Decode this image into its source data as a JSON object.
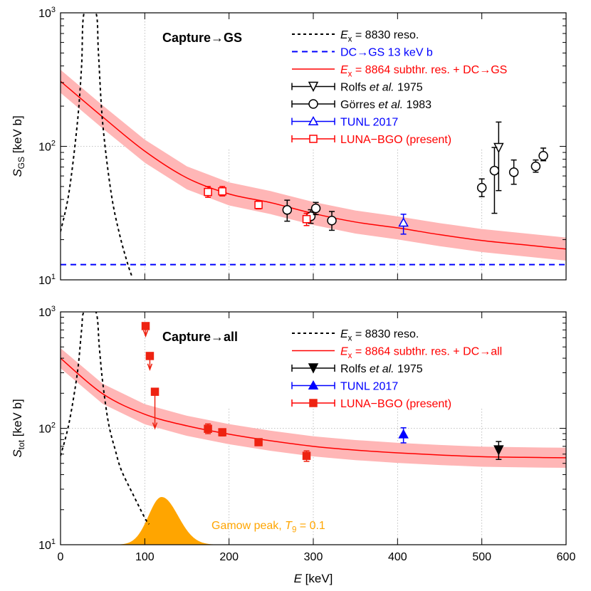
{
  "chart_data": [
    {
      "type": "line",
      "panel": "top",
      "title": "Capture→GS",
      "ylabel": {
        "main": "S",
        "sub": "GS",
        "unit": " [keV b]"
      },
      "xlim": [
        0,
        600
      ],
      "ylim": [
        10,
        1000
      ],
      "yscale": "log",
      "grid": true,
      "xticks": [
        0,
        100,
        200,
        300,
        400,
        500,
        600
      ],
      "yticks": [
        {
          "base": "10",
          "exp": "1",
          "v": 10
        },
        {
          "base": "10",
          "exp": "2",
          "v": 100
        },
        {
          "base": "10",
          "exp": "3",
          "v": 1000
        }
      ],
      "legend": [
        {
          "key": "reso",
          "segments": [
            {
              "t": "E",
              "s": "i"
            },
            {
              "t": "x",
              "s": "sub"
            },
            {
              "t": " = 8830 reso."
            }
          ],
          "color": "#000000"
        },
        {
          "key": "dc",
          "segments": [
            {
              "t": "DC→GS 13 keV b"
            }
          ],
          "color": "#0000ff"
        },
        {
          "key": "fit",
          "segments": [
            {
              "t": "E",
              "s": "i"
            },
            {
              "t": "x",
              "s": "sub"
            },
            {
              "t": " = 8864 subthr. res. + DC→GS"
            }
          ],
          "color": "#ff0000"
        },
        {
          "key": "rolfs",
          "segments": [
            {
              "t": "Rolfs "
            },
            {
              "t": "et al.",
              "s": "i"
            },
            {
              "t": " 1975"
            }
          ],
          "color": "#000000"
        },
        {
          "key": "gorres",
          "segments": [
            {
              "t": "Görres "
            },
            {
              "t": "et al.",
              "s": "i"
            },
            {
              "t": " 1983"
            }
          ],
          "color": "#000000"
        },
        {
          "key": "tunl",
          "segments": [
            {
              "t": "TUNL 2017"
            }
          ],
          "color": "#0000ff"
        },
        {
          "key": "luna",
          "segments": [
            {
              "t": "LUNA−BGO (present)"
            }
          ],
          "color": "#ff0000"
        }
      ],
      "reso_curve": [
        [
          0,
          23
        ],
        [
          10,
          45
        ],
        [
          20,
          150
        ],
        [
          25,
          400
        ],
        [
          28,
          1000
        ],
        [
          42,
          1000
        ],
        [
          45,
          500
        ],
        [
          50,
          150
        ],
        [
          60,
          45
        ],
        [
          70,
          22
        ],
        [
          80,
          13
        ],
        [
          85,
          10.5
        ]
      ],
      "dc_level": 13,
      "fit_curve": [
        [
          0,
          307
        ],
        [
          50,
          166
        ],
        [
          100,
          92
        ],
        [
          150,
          58
        ],
        [
          200,
          44
        ],
        [
          250,
          37.8
        ],
        [
          300,
          31.4
        ],
        [
          350,
          27.1
        ],
        [
          400,
          24.5
        ],
        [
          450,
          21.8
        ],
        [
          500,
          19.7
        ],
        [
          550,
          18.3
        ],
        [
          600,
          17
        ]
      ],
      "fit_band_rel": 0.22,
      "series": {
        "rolfs": {
          "marker": "open-triangle-down",
          "color": "#000000",
          "points": [
            {
              "E": 520,
              "S": 97.5,
              "lo": 46.6,
              "hi": 152
            }
          ]
        },
        "gorres": {
          "marker": "open-circle",
          "color": "#000000",
          "points": [
            {
              "E": 269,
              "S": 33.4,
              "lo": 27.5,
              "hi": 39.5
            },
            {
              "E": 297,
              "S": 29.9,
              "lo": 26.5,
              "hi": 33.5
            },
            {
              "E": 303,
              "S": 34.3,
              "lo": 30.8,
              "hi": 38.0
            },
            {
              "E": 322,
              "S": 27.8,
              "lo": 23.5,
              "hi": 32.5
            },
            {
              "E": 500,
              "S": 49,
              "lo": 42,
              "hi": 57
            },
            {
              "E": 515,
              "S": 65.8,
              "lo": 31.5,
              "hi": 98
            },
            {
              "E": 538,
              "S": 64,
              "lo": 52,
              "hi": 79
            },
            {
              "E": 564,
              "S": 70.8,
              "lo": 64,
              "hi": 79
            },
            {
              "E": 573,
              "S": 85,
              "lo": 78,
              "hi": 97
            }
          ]
        },
        "tunl": {
          "marker": "open-triangle-up",
          "color": "#0000ff",
          "points": [
            {
              "E": 407,
              "S": 26.8,
              "lo": 22,
              "hi": 31
            }
          ]
        },
        "luna": {
          "marker": "open-square",
          "color": "#ff0000",
          "points": [
            {
              "E": 175,
              "S": 45.5,
              "lo": 41.5,
              "hi": 50
            },
            {
              "E": 192,
              "S": 46,
              "lo": 42.5,
              "hi": 50
            },
            {
              "E": 235,
              "S": 36.4,
              "lo": 34,
              "hi": 39
            },
            {
              "E": 292,
              "S": 28.5,
              "lo": 25.5,
              "hi": 31.5
            }
          ]
        }
      }
    },
    {
      "type": "line",
      "panel": "bottom",
      "title": "Capture→all",
      "xlabel": {
        "main": "E",
        "unit": " [keV]"
      },
      "ylabel": {
        "main": "S",
        "sub": "tot",
        "unit": " [keV b]"
      },
      "xlim": [
        0,
        600
      ],
      "ylim": [
        10,
        1000
      ],
      "yscale": "log",
      "grid": true,
      "xticks": [
        0,
        100,
        200,
        300,
        400,
        500,
        600
      ],
      "yticks": [
        {
          "base": "10",
          "exp": "1",
          "v": 10
        },
        {
          "base": "10",
          "exp": "2",
          "v": 100
        },
        {
          "base": "10",
          "exp": "3",
          "v": 1000
        }
      ],
      "legend": [
        {
          "key": "reso",
          "segments": [
            {
              "t": "E",
              "s": "i"
            },
            {
              "t": "x",
              "s": "sub"
            },
            {
              "t": " = 8830 reso."
            }
          ],
          "color": "#000000"
        },
        {
          "key": "fit",
          "segments": [
            {
              "t": "E",
              "s": "i"
            },
            {
              "t": "x",
              "s": "sub"
            },
            {
              "t": " = 8864 subthr. res. + DC→all"
            }
          ],
          "color": "#ff0000"
        },
        {
          "key": "rolfs",
          "segments": [
            {
              "t": "Rolfs "
            },
            {
              "t": "et al.",
              "s": "i"
            },
            {
              "t": " 1975"
            }
          ],
          "color": "#000000"
        },
        {
          "key": "tunl",
          "segments": [
            {
              "t": "TUNL 2017"
            }
          ],
          "color": "#0000ff"
        },
        {
          "key": "luna",
          "segments": [
            {
              "t": "LUNA−BGO (present)"
            }
          ],
          "color": "#ff0000"
        }
      ],
      "reso_curve": [
        [
          0,
          58
        ],
        [
          10,
          110
        ],
        [
          20,
          300
        ],
        [
          25,
          700
        ],
        [
          28,
          1000
        ],
        [
          42,
          1000
        ],
        [
          46,
          500
        ],
        [
          50,
          250
        ],
        [
          57,
          110
        ],
        [
          65,
          65
        ],
        [
          72,
          44
        ],
        [
          85,
          28
        ],
        [
          100,
          17
        ],
        [
          105,
          15
        ]
      ],
      "fit_curve": [
        [
          0,
          400
        ],
        [
          50,
          198
        ],
        [
          100,
          132
        ],
        [
          150,
          105
        ],
        [
          200,
          89
        ],
        [
          250,
          78
        ],
        [
          300,
          70
        ],
        [
          350,
          65
        ],
        [
          400,
          61.5
        ],
        [
          450,
          59
        ],
        [
          500,
          57
        ],
        [
          550,
          56.3
        ],
        [
          600,
          55.8
        ]
      ],
      "fit_band_rel": 0.22,
      "gamow": {
        "label": [
          {
            "t": "Gamow peak, "
          },
          {
            "t": "T",
            "s": "i"
          },
          {
            "t": "9",
            "s": "sub"
          },
          {
            "t": " = 0.1"
          }
        ],
        "peak_E": 120,
        "peak_S": 25.7,
        "width_E": 22,
        "color": "#ffa500"
      },
      "series": {
        "rolfs": {
          "marker": "filled-triangle-down",
          "color": "#000000",
          "points": [
            {
              "E": 520,
              "S": 65,
              "lo": 54,
              "hi": 77
            }
          ]
        },
        "tunl": {
          "marker": "filled-triangle-up",
          "color": "#0000ff",
          "points": [
            {
              "E": 407,
              "S": 88.7,
              "lo": 75,
              "hi": 101
            }
          ]
        },
        "luna": {
          "marker": "filled-square",
          "color": "#ee2211",
          "points": [
            {
              "E": 101,
              "S": 755,
              "upper_limit": true,
              "arrow_to": 620
            },
            {
              "E": 106,
              "S": 418,
              "upper_limit": true,
              "arrow_to": 320
            },
            {
              "E": 112,
              "S": 206,
              "upper_limit": true,
              "arrow_to": 100
            },
            {
              "E": 175,
              "S": 99,
              "lo": 90,
              "hi": 109
            },
            {
              "E": 192,
              "S": 92.5,
              "lo": 86,
              "hi": 99
            },
            {
              "E": 235,
              "S": 76,
              "lo": 71,
              "hi": 81
            },
            {
              "E": 292,
              "S": 58,
              "lo": 52,
              "hi": 64
            }
          ]
        }
      }
    }
  ]
}
